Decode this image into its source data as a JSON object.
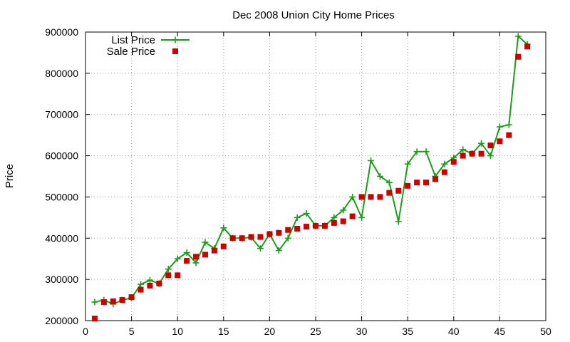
{
  "chart_data": {
    "type": "line",
    "title": "Dec 2008 Union City Home Prices",
    "xlabel": "",
    "ylabel": "Price",
    "xlim": [
      0,
      50
    ],
    "ylim": [
      200000,
      900000
    ],
    "xticks": [
      0,
      5,
      10,
      15,
      20,
      25,
      30,
      35,
      40,
      45,
      50
    ],
    "yticks": [
      200000,
      300000,
      400000,
      500000,
      600000,
      700000,
      800000,
      900000
    ],
    "grid": true,
    "legend_position": "top-left",
    "series": [
      {
        "name": "List Price",
        "style": "linespoints",
        "color": "#1a9e1a",
        "marker": "plus",
        "points": [
          [
            1,
            245000
          ],
          [
            2,
            250000
          ],
          [
            3,
            240000
          ],
          [
            4,
            250000
          ],
          [
            5,
            255000
          ],
          [
            6,
            288000
          ],
          [
            7,
            298000
          ],
          [
            8,
            290000
          ],
          [
            9,
            325000
          ],
          [
            10,
            350000
          ],
          [
            11,
            365000
          ],
          [
            12,
            340000
          ],
          [
            13,
            390000
          ],
          [
            14,
            375000
          ],
          [
            15,
            425000
          ],
          [
            16,
            400000
          ],
          [
            17,
            400000
          ],
          [
            18,
            402000
          ],
          [
            19,
            375000
          ],
          [
            20,
            410000
          ],
          [
            21,
            370000
          ],
          [
            22,
            400000
          ],
          [
            23,
            450000
          ],
          [
            24,
            460000
          ],
          [
            25,
            430000
          ],
          [
            26,
            430000
          ],
          [
            27,
            450000
          ],
          [
            28,
            468000
          ],
          [
            29,
            500000
          ],
          [
            30,
            450000
          ],
          [
            31,
            588000
          ],
          [
            32,
            550000
          ],
          [
            33,
            535000
          ],
          [
            34,
            440000
          ],
          [
            35,
            580000
          ],
          [
            36,
            610000
          ],
          [
            37,
            610000
          ],
          [
            38,
            550000
          ],
          [
            39,
            580000
          ],
          [
            40,
            595000
          ],
          [
            41,
            615000
          ],
          [
            42,
            605000
          ],
          [
            43,
            630000
          ],
          [
            44,
            600000
          ],
          [
            45,
            670000
          ],
          [
            46,
            675000
          ],
          [
            47,
            890000
          ],
          [
            48,
            870000
          ]
        ]
      },
      {
        "name": "Sale Price",
        "style": "points",
        "color": "#cc0000",
        "marker": "square",
        "points": [
          [
            1,
            205000
          ],
          [
            2,
            245000
          ],
          [
            3,
            247000
          ],
          [
            4,
            250000
          ],
          [
            5,
            257000
          ],
          [
            6,
            275000
          ],
          [
            7,
            285000
          ],
          [
            8,
            290000
          ],
          [
            9,
            310000
          ],
          [
            10,
            310000
          ],
          [
            11,
            345000
          ],
          [
            12,
            355000
          ],
          [
            13,
            360000
          ],
          [
            14,
            370000
          ],
          [
            15,
            380000
          ],
          [
            16,
            400000
          ],
          [
            17,
            400000
          ],
          [
            18,
            403000
          ],
          [
            19,
            403000
          ],
          [
            20,
            410000
          ],
          [
            21,
            413000
          ],
          [
            22,
            420000
          ],
          [
            23,
            423000
          ],
          [
            24,
            428000
          ],
          [
            25,
            430000
          ],
          [
            26,
            430000
          ],
          [
            27,
            437000
          ],
          [
            28,
            441000
          ],
          [
            29,
            453000
          ],
          [
            30,
            500000
          ],
          [
            31,
            500000
          ],
          [
            32,
            500000
          ],
          [
            33,
            510000
          ],
          [
            34,
            515000
          ],
          [
            35,
            527000
          ],
          [
            36,
            535000
          ],
          [
            37,
            535000
          ],
          [
            38,
            543000
          ],
          [
            39,
            560000
          ],
          [
            40,
            585000
          ],
          [
            41,
            600000
          ],
          [
            42,
            605000
          ],
          [
            43,
            605000
          ],
          [
            44,
            625000
          ],
          [
            45,
            635000
          ],
          [
            46,
            650000
          ],
          [
            47,
            840000
          ],
          [
            48,
            865000
          ]
        ]
      }
    ]
  }
}
